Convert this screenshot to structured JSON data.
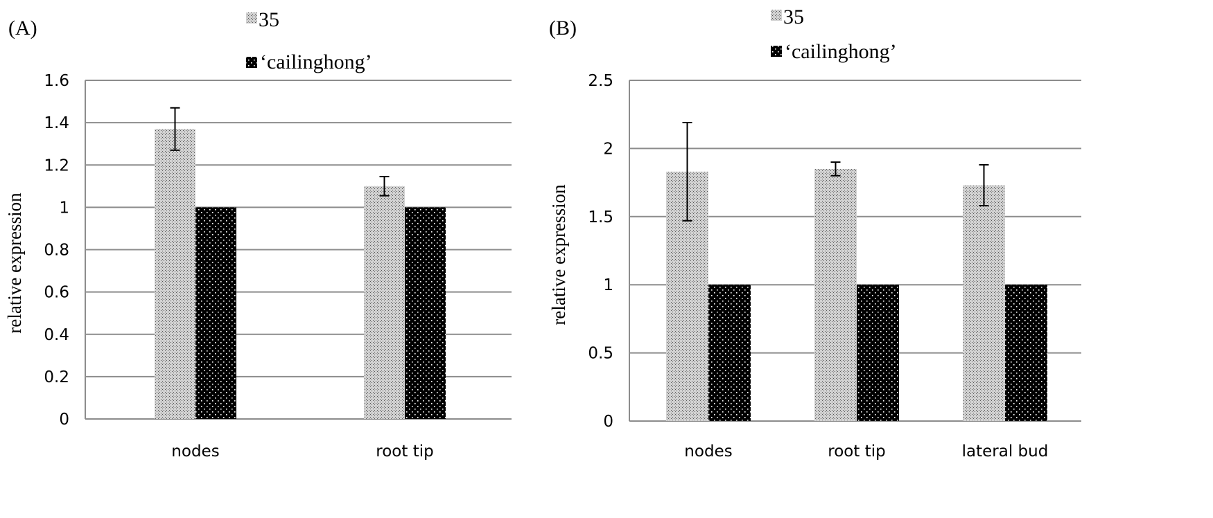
{
  "chart_data": [
    {
      "type": "bar",
      "panel_label": "(A)",
      "categories": [
        "nodes",
        "root tip"
      ],
      "series": [
        {
          "name": "35",
          "values": [
            1.37,
            1.1
          ],
          "errors": [
            0.1,
            0.045
          ],
          "pattern": "light-stipple"
        },
        {
          "name": "‘cailinghong’",
          "values": [
            1.0,
            1.0
          ],
          "errors": [
            0,
            0
          ],
          "pattern": "dark-dots"
        }
      ],
      "ylabel": "relative expression",
      "xlabel": "",
      "ylim": [
        0,
        1.6
      ],
      "yticks": [
        0,
        0.2,
        0.4,
        0.6,
        0.8,
        1,
        1.2,
        1.4,
        1.6
      ],
      "ytick_labels": [
        "0",
        "0.2",
        "0.4",
        "0.6",
        "0.8",
        "1",
        "1.2",
        "1.4",
        "1.6"
      ],
      "grid": true,
      "legend_position": "top"
    },
    {
      "type": "bar",
      "panel_label": "(B)",
      "categories": [
        "nodes",
        "root tip",
        "lateral bud"
      ],
      "series": [
        {
          "name": "35",
          "values": [
            1.83,
            1.85,
            1.73
          ],
          "errors": [
            0.36,
            0.05,
            0.15
          ],
          "pattern": "light-stipple"
        },
        {
          "name": "‘cailinghong’",
          "values": [
            1.0,
            1.0,
            1.0
          ],
          "errors": [
            0,
            0,
            0
          ],
          "pattern": "dark-dots"
        }
      ],
      "ylabel": "relative expression",
      "xlabel": "",
      "ylim": [
        0,
        2.5
      ],
      "yticks": [
        0,
        0.5,
        1,
        1.5,
        2,
        2.5
      ],
      "ytick_labels": [
        "0",
        "0.5",
        "1",
        "1.5",
        "2",
        "2.5"
      ],
      "grid": true,
      "legend_position": "top"
    }
  ]
}
